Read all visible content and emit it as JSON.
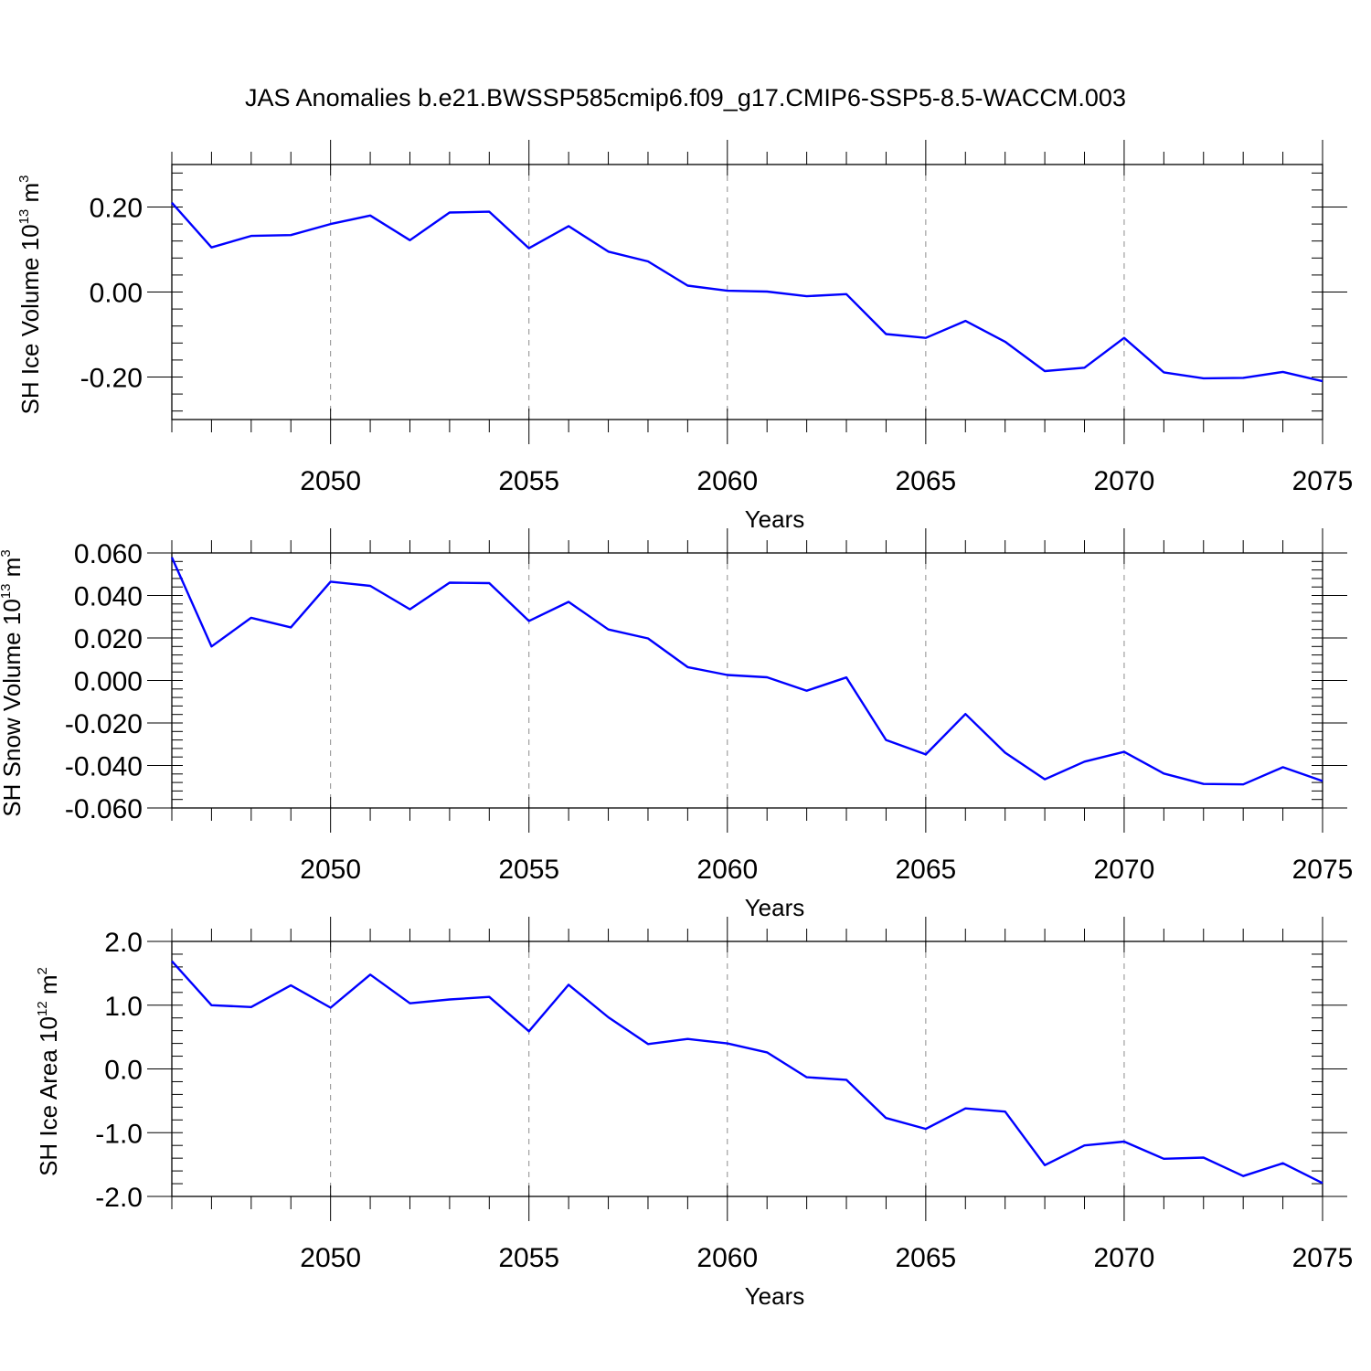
{
  "title": "JAS Anomalies b.e21.BWSSP585cmip6.f09_g17.CMIP6-SSP5-8.5-WACCM.003",
  "colors": {
    "series": "#0000ff",
    "axis": "#000000",
    "grid": "#8c8c8c",
    "background": "#ffffff"
  },
  "chart_data": [
    {
      "type": "line",
      "ylabel": {
        "base": "SH Ice Volume 10",
        "exponent": "13",
        "unit": " m",
        "unit_exponent": "3"
      },
      "xlabel": "Years",
      "xlim": [
        2046,
        2075
      ],
      "ylim": [
        -0.3,
        0.3
      ],
      "ytick_values": [
        -0.2,
        0.0,
        0.2
      ],
      "ytick_labels": [
        "-0.20",
        "0.00",
        "0.20"
      ],
      "xtick_values": [
        2050,
        2055,
        2060,
        2065,
        2070,
        2075
      ],
      "xtick_labels": [
        "2050",
        "2055",
        "2060",
        "2065",
        "2070",
        "2075"
      ],
      "grid": "vertical dashed at major x ticks",
      "series": [
        {
          "name": "SH Ice Volume",
          "x": [
            2046,
            2047,
            2048,
            2049,
            2050,
            2051,
            2052,
            2053,
            2054,
            2055,
            2056,
            2057,
            2058,
            2059,
            2060,
            2061,
            2062,
            2063,
            2064,
            2065,
            2066,
            2067,
            2068,
            2069,
            2070,
            2071,
            2072,
            2073,
            2074,
            2075
          ],
          "values": [
            0.21,
            0.105,
            0.132,
            0.134,
            0.16,
            0.18,
            0.122,
            0.187,
            0.189,
            0.103,
            0.155,
            0.095,
            0.072,
            0.015,
            0.003,
            0.001,
            -0.01,
            -0.005,
            -0.099,
            -0.108,
            -0.068,
            -0.117,
            -0.186,
            -0.178,
            -0.108,
            -0.189,
            -0.203,
            -0.202,
            -0.188,
            -0.21
          ]
        }
      ]
    },
    {
      "type": "line",
      "ylabel": {
        "base": "SH Snow Volume 10",
        "exponent": "13",
        "unit": " m",
        "unit_exponent": "3"
      },
      "xlabel": "Years",
      "xlim": [
        2046,
        2075
      ],
      "ylim": [
        -0.06,
        0.06
      ],
      "ytick_values": [
        -0.06,
        -0.04,
        -0.02,
        0.0,
        0.02,
        0.04,
        0.06
      ],
      "ytick_labels": [
        "-0.060",
        "-0.040",
        "-0.020",
        "0.000",
        "0.020",
        "0.040",
        "0.060"
      ],
      "xtick_values": [
        2050,
        2055,
        2060,
        2065,
        2070,
        2075
      ],
      "xtick_labels": [
        "2050",
        "2055",
        "2060",
        "2065",
        "2070",
        "2075"
      ],
      "grid": "vertical dashed at major x ticks",
      "series": [
        {
          "name": "SH Snow Volume",
          "x": [
            2046,
            2047,
            2048,
            2049,
            2050,
            2051,
            2052,
            2053,
            2054,
            2055,
            2056,
            2057,
            2058,
            2059,
            2060,
            2061,
            2062,
            2063,
            2064,
            2065,
            2066,
            2067,
            2068,
            2069,
            2070,
            2071,
            2072,
            2073,
            2074,
            2075
          ],
          "values": [
            0.058,
            0.016,
            0.0295,
            0.025,
            0.0465,
            0.0445,
            0.0335,
            0.046,
            0.0458,
            0.028,
            0.037,
            0.024,
            0.0198,
            0.0063,
            0.0026,
            0.0015,
            -0.0048,
            0.0014,
            -0.028,
            -0.0348,
            -0.0158,
            -0.034,
            -0.0465,
            -0.0382,
            -0.0336,
            -0.0438,
            -0.0487,
            -0.0489,
            -0.0408,
            -0.0473
          ]
        }
      ]
    },
    {
      "type": "line",
      "ylabel": {
        "base": "SH Ice Area 10",
        "exponent": "12",
        "unit": " m",
        "unit_exponent": "2"
      },
      "xlabel": "Years",
      "xlim": [
        2046,
        2075
      ],
      "ylim": [
        -2.0,
        2.0
      ],
      "ytick_values": [
        -2.0,
        -1.0,
        0.0,
        1.0,
        2.0
      ],
      "ytick_labels": [
        "-2.0",
        "-1.0",
        "0.0",
        "1.0",
        "2.0"
      ],
      "xtick_values": [
        2050,
        2055,
        2060,
        2065,
        2070,
        2075
      ],
      "xtick_labels": [
        "2050",
        "2055",
        "2060",
        "2065",
        "2070",
        "2075"
      ],
      "grid": "vertical dashed at major x ticks",
      "series": [
        {
          "name": "SH Ice Area",
          "x": [
            2046,
            2047,
            2048,
            2049,
            2050,
            2051,
            2052,
            2053,
            2054,
            2055,
            2056,
            2057,
            2058,
            2059,
            2060,
            2061,
            2062,
            2063,
            2064,
            2065,
            2066,
            2067,
            2068,
            2069,
            2070,
            2071,
            2072,
            2073,
            2074,
            2075
          ],
          "values": [
            1.69,
            1.0,
            0.97,
            1.31,
            0.96,
            1.48,
            1.03,
            1.09,
            1.13,
            0.59,
            1.32,
            0.81,
            0.39,
            0.47,
            0.4,
            0.26,
            -0.13,
            -0.17,
            -0.77,
            -0.94,
            -0.62,
            -0.67,
            -1.51,
            -1.2,
            -1.14,
            -1.41,
            -1.39,
            -1.68,
            -1.48,
            -1.79
          ]
        }
      ]
    }
  ]
}
